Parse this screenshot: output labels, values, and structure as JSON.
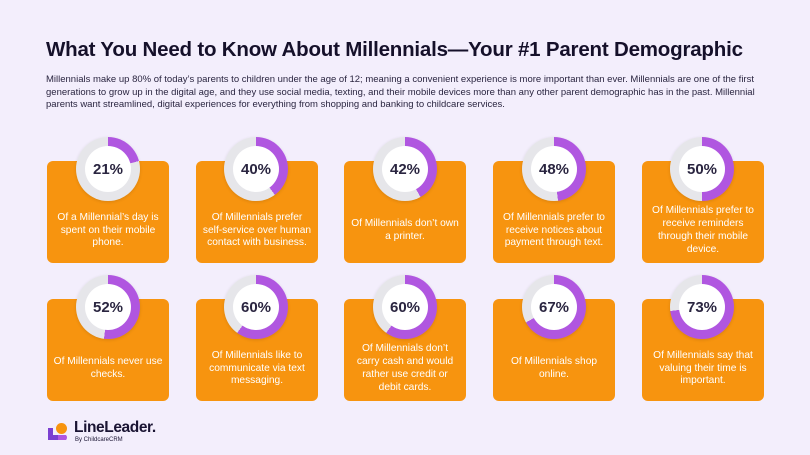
{
  "title": "What You Need to Know About Millennials—Your #1 Parent Demographic",
  "intro": "Millennials make up 80% of today’s parents to children under the age of 12; meaning a convenient experience is more important than ever. Millennials are one of the first generations to grow up in the digital age, and they use social media, texting, and their mobile devices more than any other parent demographic has in the past. Millennial parents want streamlined, digital experiences for everything from shopping and banking to childcare services.",
  "colors": {
    "background": "#f3eefc",
    "card": "#f7940f",
    "ring_fill": "#b056e0",
    "ring_track": "#e6e6ea",
    "title": "#15102a"
  },
  "stats": [
    {
      "percent": 21,
      "label": "21%",
      "text": "Of a Millennial’s day is spent on their mobile phone."
    },
    {
      "percent": 40,
      "label": "40%",
      "text": "Of Millennials prefer self-service over human contact with business."
    },
    {
      "percent": 42,
      "label": "42%",
      "text": "Of Millennials don’t own a printer."
    },
    {
      "percent": 48,
      "label": "48%",
      "text": "Of Millennials prefer to receive notices about payment through text."
    },
    {
      "percent": 50,
      "label": "50%",
      "text": "Of Millennials prefer to receive reminders through their mobile device."
    },
    {
      "percent": 52,
      "label": "52%",
      "text": "Of Millennials never use checks."
    },
    {
      "percent": 60,
      "label": "60%",
      "text": "Of Millennials like to communicate via text messaging."
    },
    {
      "percent": 60,
      "label": "60%",
      "text": "Of Millennials don’t carry cash and would rather use credit or debit cards."
    },
    {
      "percent": 67,
      "label": "67%",
      "text": "Of Millennials shop online."
    },
    {
      "percent": 73,
      "label": "73%",
      "text": "Of Millennials say that valuing their time is important."
    }
  ],
  "logo": {
    "name": "LineLeader.",
    "sub": "By ChildcareCRM",
    "icon": "lineleader-logo-icon"
  }
}
